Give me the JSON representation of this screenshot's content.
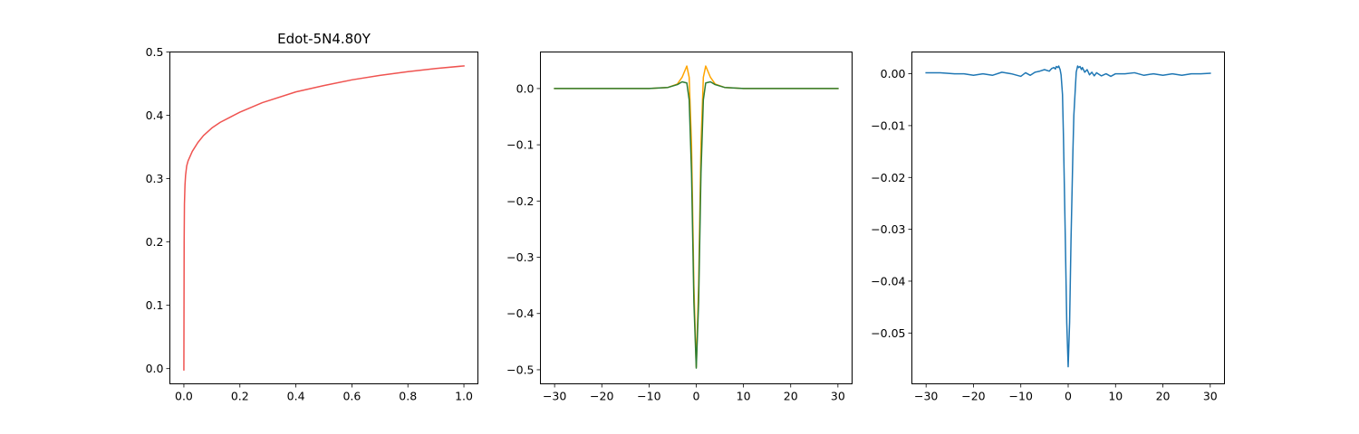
{
  "chart_data": [
    {
      "type": "line",
      "title": "Edot-5N4.80Y",
      "xlabel": "",
      "ylabel": "",
      "xlim": [
        -0.05,
        1.05
      ],
      "ylim": [
        -0.024,
        0.5
      ],
      "xticks": [
        0.0,
        0.2,
        0.4,
        0.6,
        0.8,
        1.0
      ],
      "xtick_labels": [
        "0.0",
        "0.2",
        "0.4",
        "0.6",
        "0.8",
        "1.0"
      ],
      "yticks": [
        0.0,
        0.1,
        0.2,
        0.3,
        0.4,
        0.5
      ],
      "ytick_labels": [
        "0.0",
        "0.1",
        "0.2",
        "0.3",
        "0.4",
        "0.5"
      ],
      "grid": false,
      "series": [
        {
          "color": "#ef5350",
          "x": [
            0.0,
            0.001,
            0.002,
            0.004,
            0.006,
            0.01,
            0.015,
            0.02,
            0.03,
            0.05,
            0.07,
            0.1,
            0.13,
            0.2,
            0.28,
            0.4,
            0.5,
            0.6,
            0.7,
            0.8,
            0.9,
            1.0
          ],
          "y": [
            -0.002,
            0.2,
            0.26,
            0.29,
            0.305,
            0.32,
            0.328,
            0.333,
            0.343,
            0.357,
            0.368,
            0.38,
            0.389,
            0.405,
            0.42,
            0.437,
            0.447,
            0.456,
            0.463,
            0.469,
            0.474,
            0.478
          ]
        }
      ]
    },
    {
      "type": "line",
      "title": "",
      "xlabel": "",
      "ylabel": "",
      "xlim": [
        -33,
        33
      ],
      "ylim": [
        -0.525,
        0.065
      ],
      "xticks": [
        -30,
        -20,
        -10,
        0,
        10,
        20,
        30
      ],
      "xtick_labels": [
        "−30",
        "−20",
        "−10",
        "0",
        "10",
        "20",
        "30"
      ],
      "yticks": [
        0.0,
        -0.1,
        -0.2,
        -0.3,
        -0.4,
        -0.5
      ],
      "ytick_labels": [
        "0.0",
        "−0.1",
        "−0.2",
        "−0.3",
        "−0.4",
        "−0.5"
      ],
      "grid": false,
      "series": [
        {
          "color": "#ffa500",
          "x": [
            -30,
            -20,
            -10,
            -6,
            -4,
            -3,
            -2.5,
            -2,
            -1.5,
            -1,
            -0.5,
            0,
            0.5,
            1,
            1.5,
            2,
            2.5,
            3,
            4,
            6,
            10,
            20,
            30
          ],
          "y": [
            0.0,
            0.0,
            0.0,
            0.002,
            0.008,
            0.02,
            0.03,
            0.04,
            0.02,
            -0.1,
            -0.35,
            -0.495,
            -0.35,
            -0.1,
            0.02,
            0.04,
            0.03,
            0.02,
            0.008,
            0.002,
            0.0,
            0.0,
            0.0
          ]
        },
        {
          "color": "#2e7d32",
          "x": [
            -30,
            -20,
            -10,
            -6,
            -4,
            -3,
            -2,
            -1.5,
            -1,
            -0.5,
            0,
            0.5,
            1,
            1.5,
            2,
            3,
            4,
            6,
            10,
            20,
            30
          ],
          "y": [
            0.0,
            0.0,
            0.0,
            0.002,
            0.007,
            0.012,
            0.01,
            -0.02,
            -0.15,
            -0.38,
            -0.497,
            -0.38,
            -0.15,
            -0.02,
            0.01,
            0.012,
            0.007,
            0.002,
            0.0,
            0.0,
            0.0
          ]
        }
      ]
    },
    {
      "type": "line",
      "title": "",
      "xlabel": "",
      "ylabel": "",
      "xlim": [
        -33,
        33
      ],
      "ylim": [
        -0.0598,
        0.0042
      ],
      "xticks": [
        -30,
        -20,
        -10,
        0,
        10,
        20,
        30
      ],
      "xtick_labels": [
        "−30",
        "−20",
        "−10",
        "0",
        "10",
        "20",
        "30"
      ],
      "yticks": [
        0.0,
        -0.01,
        -0.02,
        -0.03,
        -0.04,
        -0.05
      ],
      "ytick_labels": [
        "0.00",
        "−0.01",
        "−0.02",
        "−0.03",
        "−0.04",
        "−0.05"
      ],
      "grid": false,
      "series": [
        {
          "color": "#1f77b4",
          "x": [
            -30,
            -27,
            -24,
            -22,
            -20,
            -18,
            -16,
            -14,
            -12,
            -10,
            -9,
            -8,
            -7,
            -6,
            -5,
            -4,
            -3.5,
            -3,
            -2.7,
            -2.5,
            -2.2,
            -2,
            -1.7,
            -1.5,
            -1.2,
            -1,
            -0.6,
            -0.3,
            0,
            0.3,
            0.6,
            1,
            1.2,
            1.5,
            1.7,
            2,
            2.2,
            2.5,
            2.8,
            3,
            3.5,
            4,
            4.5,
            5,
            5.5,
            6,
            7,
            8,
            9,
            10,
            12,
            14,
            16,
            18,
            20,
            22,
            24,
            26,
            28,
            30
          ],
          "y": [
            0.0002,
            0.0002,
            0.0,
            0.0,
            -0.0003,
            0.0,
            -0.0003,
            0.0003,
            0.0,
            -0.0005,
            0.0002,
            -0.0003,
            0.0003,
            0.0005,
            0.0008,
            0.0005,
            0.001,
            0.0012,
            0.0009,
            0.0014,
            0.0012,
            0.0015,
            0.0008,
            -0.0002,
            -0.004,
            -0.012,
            -0.032,
            -0.048,
            -0.0565,
            -0.048,
            -0.032,
            -0.015,
            -0.008,
            -0.003,
            0.0003,
            0.0015,
            0.0012,
            0.0014,
            0.0008,
            0.0012,
            0.0003,
            0.0008,
            -0.0002,
            0.0003,
            -0.0004,
            0.0002,
            -0.0004,
            0.0,
            -0.0005,
            0.0,
            0.0,
            0.0002,
            -0.0003,
            0.0,
            -0.0003,
            0.0,
            -0.0003,
            0.0,
            0.0,
            0.0001
          ]
        }
      ]
    }
  ]
}
